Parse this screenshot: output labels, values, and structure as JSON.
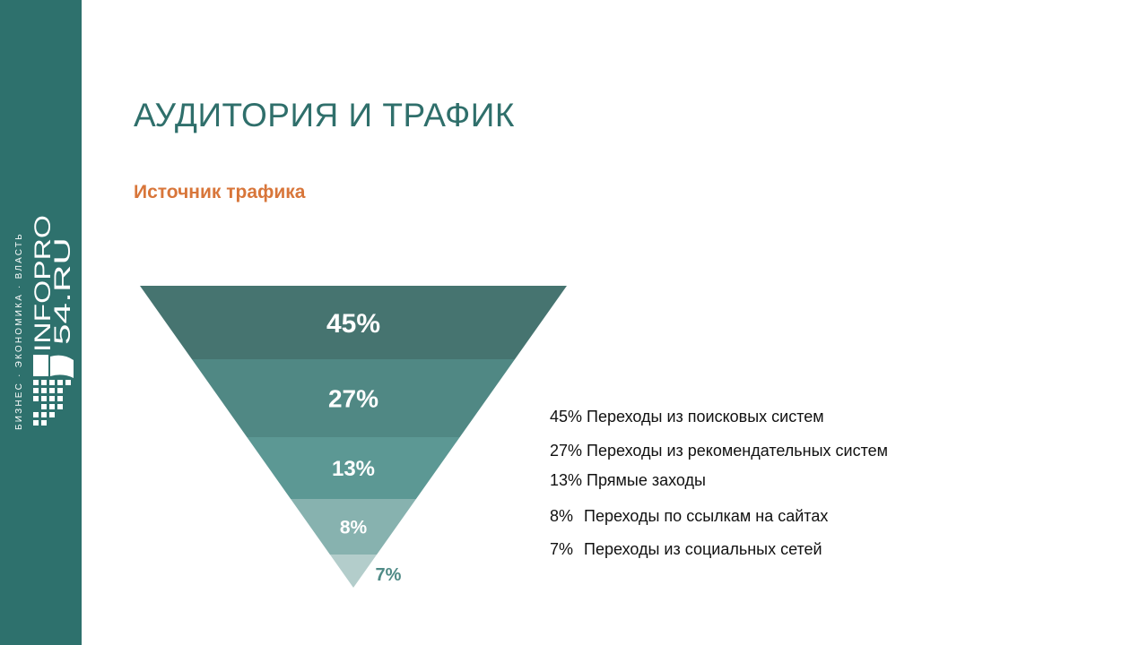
{
  "sidebar": {
    "brand_line1": "INFOPRO",
    "brand_line2": "54.RU",
    "tagline": "БИЗНЕС · ЭКОНОМИКА · ВЛАСТЬ",
    "color": "#2e716d"
  },
  "slide": {
    "title": "АУДИТОРИЯ И ТРАФИК",
    "subtitle": "Источник трафика"
  },
  "chart_data": {
    "type": "funnel",
    "categories": [
      "45%",
      "27%",
      "13%",
      "8%",
      "7%"
    ],
    "values": [
      45,
      27,
      13,
      8,
      7
    ],
    "colors": [
      "#467470",
      "#508884",
      "#5c9894",
      "#87b2af",
      "#b3cdcb"
    ]
  },
  "legend": [
    {
      "pct": "45%",
      "text": "Переходы из поисковых систем"
    },
    {
      "pct": "27%",
      "text": "Переходы из рекомендательных систем"
    },
    {
      "pct": "13%",
      "text": "Прямые заходы"
    },
    {
      "pct": "8%",
      "text": "Переходы по ссылкам на сайтах"
    },
    {
      "pct": "7%",
      "text": "Переходы из социальных сетей"
    }
  ]
}
